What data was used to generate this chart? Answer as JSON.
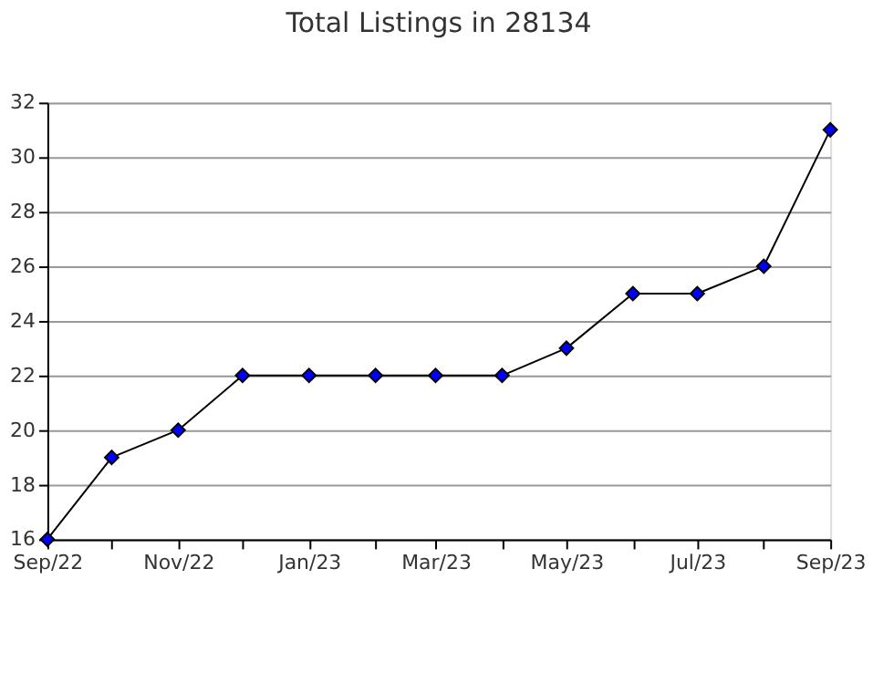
{
  "chart_data": {
    "type": "line",
    "title": "Total Listings in 28134",
    "x": [
      "2022-09",
      "2022-10",
      "2022-11",
      "2022-12",
      "2023-01",
      "2023-02",
      "2023-03",
      "2023-04",
      "2023-05",
      "2023-06",
      "2023-07",
      "2023-08",
      "2023-09"
    ],
    "series": [
      {
        "color": "#0000ff",
        "values": [
          16,
          19,
          20,
          22,
          22,
          22,
          22,
          22,
          23,
          25,
          25,
          26,
          31
        ]
      }
    ],
    "xlim": [
      "2022-09",
      "2023-09"
    ],
    "xticks": [
      {
        "value": "2022-09",
        "label": "Sep/22"
      },
      {
        "value": "2022-10",
        "label": null
      },
      {
        "value": "2022-11",
        "label": "Nov/22"
      },
      {
        "value": "2022-12",
        "label": null
      },
      {
        "value": "2023-01",
        "label": "Jan/23"
      },
      {
        "value": "2023-02",
        "label": null
      },
      {
        "value": "2023-03",
        "label": "Mar/23"
      },
      {
        "value": "2023-04",
        "label": null
      },
      {
        "value": "2023-05",
        "label": "May/23"
      },
      {
        "value": "2023-06",
        "label": null
      },
      {
        "value": "2023-07",
        "label": "Jul/23"
      },
      {
        "value": "2023-08",
        "label": null
      },
      {
        "value": "2023-09",
        "label": "Sep/23"
      }
    ],
    "ylim": [
      16,
      32
    ],
    "yticks": [
      16,
      18,
      20,
      22,
      24,
      26,
      28,
      30,
      32
    ],
    "grid": "y",
    "legend": false,
    "marker": "diamond",
    "line_style": "solid"
  }
}
